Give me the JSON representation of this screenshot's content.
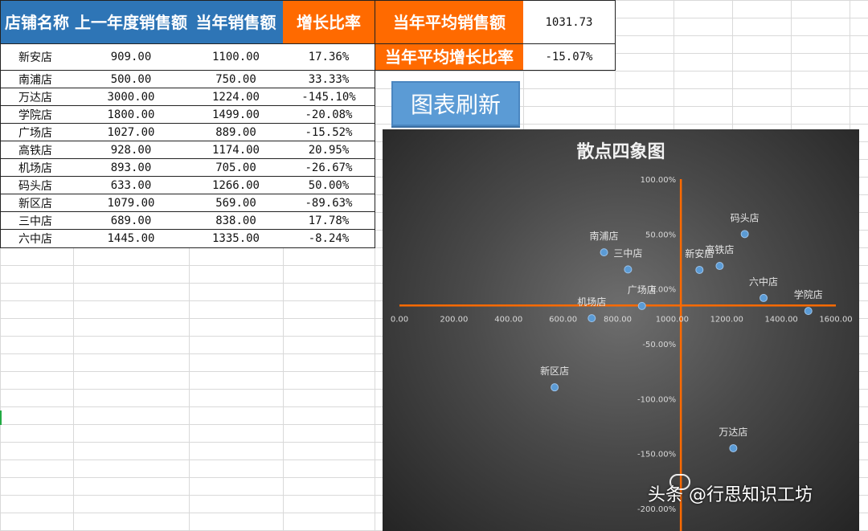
{
  "table": {
    "headers": [
      "店铺名称",
      "上一年度销售额",
      "当年销售额",
      "增长比率"
    ],
    "rows": [
      [
        "新安店",
        "909.00",
        "1100.00",
        "17.36%"
      ],
      [
        "南浦店",
        "500.00",
        "750.00",
        "33.33%"
      ],
      [
        "万达店",
        "3000.00",
        "1224.00",
        "-145.10%"
      ],
      [
        "学院店",
        "1800.00",
        "1499.00",
        "-20.08%"
      ],
      [
        "广场店",
        "1027.00",
        "889.00",
        "-15.52%"
      ],
      [
        "高铁店",
        "928.00",
        "1174.00",
        "20.95%"
      ],
      [
        "机场店",
        "893.00",
        "705.00",
        "-26.67%"
      ],
      [
        "码头店",
        "633.00",
        "1266.00",
        "50.00%"
      ],
      [
        "新区店",
        "1079.00",
        "569.00",
        "-89.63%"
      ],
      [
        "三中店",
        "689.00",
        "838.00",
        "17.78%"
      ],
      [
        "六中店",
        "1445.00",
        "1335.00",
        "-8.24%"
      ]
    ]
  },
  "kpi": {
    "avg_sales_label": "当年平均销售额",
    "avg_sales_value": "1031.73",
    "avg_growth_label": "当年平均增长比率",
    "avg_growth_value": "-15.07%"
  },
  "refresh_button": "图表刷新",
  "colors": {
    "header_blue": "#2e75b6",
    "header_orange": "#ff6a00",
    "point_blue": "#5b9bd5",
    "axis_orange": "#ff6a00",
    "button_blue": "#5b9bd5"
  },
  "chart_data": {
    "type": "scatter",
    "title": "散点四象图",
    "xlim": [
      0,
      1600
    ],
    "ylim": [
      -200,
      100
    ],
    "x_ticks": [
      "0.00",
      "200.00",
      "400.00",
      "600.00",
      "800.00",
      "1000.00",
      "1200.00",
      "1400.00",
      "1600.00"
    ],
    "y_ticks": [
      "100.00%",
      "50.00%",
      "0.00%",
      "-50.00%",
      "-100.00%",
      "-150.00%",
      "-200.00%"
    ],
    "crosshair": {
      "x": 1031.73,
      "y": -15.07
    },
    "points": [
      {
        "label": "新安店",
        "x": 1100,
        "y": 17.36
      },
      {
        "label": "南浦店",
        "x": 750,
        "y": 33.33
      },
      {
        "label": "万达店",
        "x": 1224,
        "y": -145.1
      },
      {
        "label": "学院店",
        "x": 1499,
        "y": -20.08
      },
      {
        "label": "广场店",
        "x": 889,
        "y": -15.52
      },
      {
        "label": "高铁店",
        "x": 1174,
        "y": 20.95
      },
      {
        "label": "机场店",
        "x": 705,
        "y": -26.67
      },
      {
        "label": "码头店",
        "x": 1266,
        "y": 50.0
      },
      {
        "label": "新区店",
        "x": 569,
        "y": -89.63
      },
      {
        "label": "三中店",
        "x": 838,
        "y": 17.78
      },
      {
        "label": "六中店",
        "x": 1335,
        "y": -8.24
      }
    ]
  },
  "watermark": "头条 @行思知识工坊"
}
